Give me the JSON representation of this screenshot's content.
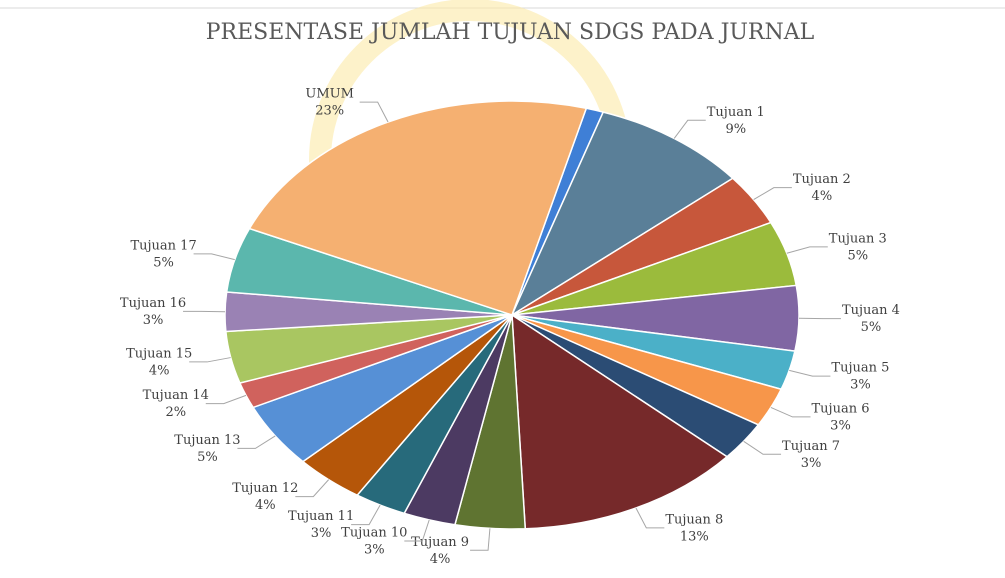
{
  "chart_data": {
    "type": "pie",
    "title": "PRESENTASE JUMLAH TUJUAN SDGS PADA JURNAL",
    "categories": [
      null,
      "Tujuan 1",
      "Tujuan 2",
      "Tujuan 3",
      "Tujuan 4",
      "Tujuan 5",
      "Tujuan 6",
      "Tujuan 7",
      "Tujuan 8",
      "Tujuan 9",
      "Tujuan 10",
      "Tujuan 11",
      "Tujuan 12",
      "Tujuan 13",
      "Tujuan 14",
      "Tujuan 15",
      "Tujuan 16",
      "Tujuan 17",
      "UMUM"
    ],
    "values": [
      1,
      9,
      4,
      5,
      5,
      3,
      3,
      3,
      13,
      4,
      3,
      3,
      4,
      5,
      2,
      4,
      3,
      5,
      23
    ],
    "value_labels": [
      null,
      "9%",
      "4%",
      "5%",
      "5%",
      "3%",
      "3%",
      "3%",
      "13%",
      "4%",
      "3%",
      "3%",
      "4%",
      "5%",
      "2%",
      "4%",
      "3%",
      "5%",
      "23%"
    ],
    "colors": [
      "#3f7fd6",
      "#5a7f98",
      "#c7573b",
      "#9bbb3c",
      "#8066a3",
      "#4bb0c8",
      "#f7964a",
      "#2b4c74",
      "#76292a",
      "#5f7431",
      "#4c3a62",
      "#276a7b",
      "#b55609",
      "#5690d6",
      "#d0625d",
      "#a9c661",
      "#9a82b4",
      "#5bb7ad",
      "#f5b071"
    ]
  }
}
